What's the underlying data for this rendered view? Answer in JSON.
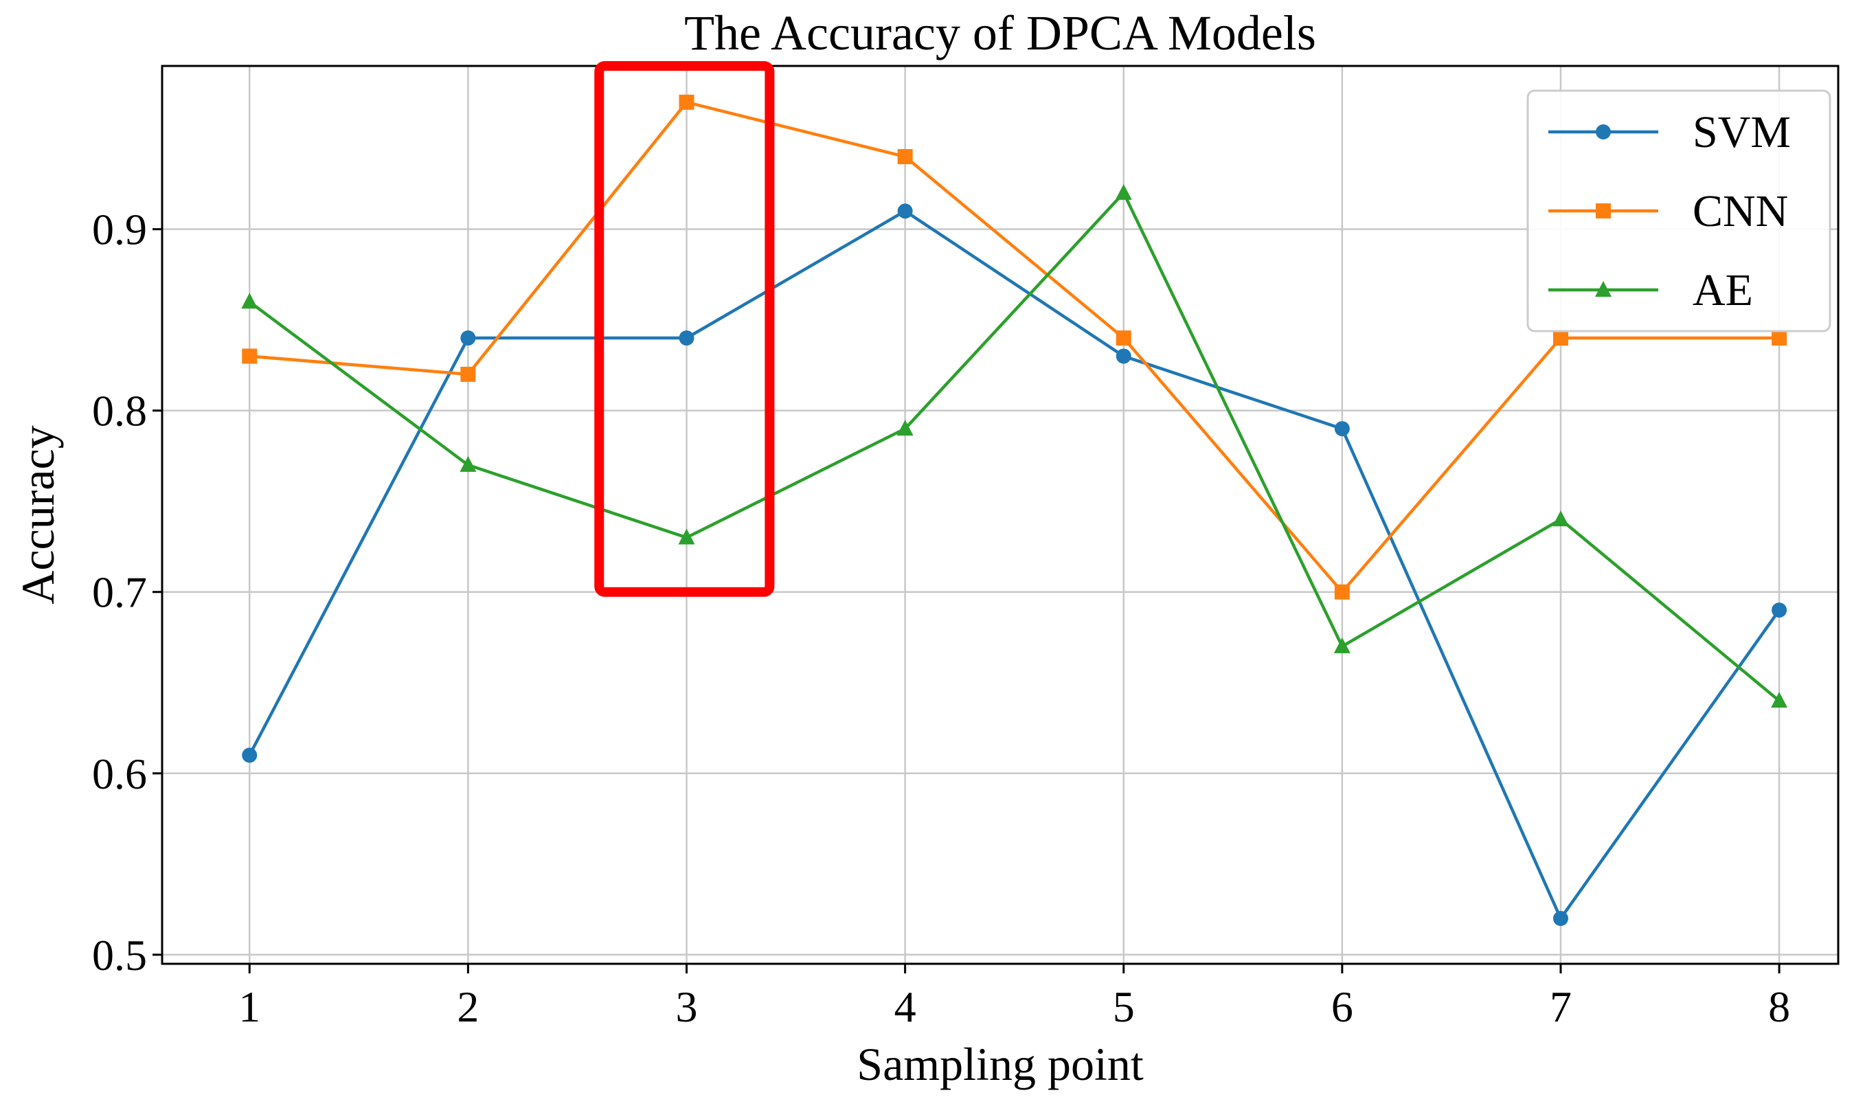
{
  "chart_data": {
    "type": "line",
    "title": "The Accuracy of DPCA Models",
    "xlabel": "Sampling point",
    "ylabel": "Accuracy",
    "x": [
      1,
      2,
      3,
      4,
      5,
      6,
      7,
      8
    ],
    "xticks": [
      "1",
      "2",
      "3",
      "4",
      "5",
      "6",
      "7",
      "8"
    ],
    "yticks": [
      "0.5",
      "0.6",
      "0.7",
      "0.8",
      "0.9"
    ],
    "ylim": [
      0.495,
      0.99
    ],
    "xlim": [
      0.6,
      8.27
    ],
    "grid": true,
    "legend_position": "top-right",
    "series": [
      {
        "name": "SVM",
        "color": "#1f77b4",
        "marker": "circle",
        "values": [
          0.61,
          0.84,
          0.84,
          0.91,
          0.83,
          0.79,
          0.52,
          0.69
        ]
      },
      {
        "name": "CNN",
        "color": "#ff7f0e",
        "marker": "square",
        "values": [
          0.83,
          0.82,
          0.97,
          0.94,
          0.84,
          0.7,
          0.84,
          0.84
        ]
      },
      {
        "name": "AE",
        "color": "#2ca02c",
        "marker": "triangle",
        "values": [
          0.86,
          0.77,
          0.73,
          0.79,
          0.92,
          0.67,
          0.74,
          0.64
        ]
      }
    ],
    "highlight": {
      "color": "#ff0000",
      "x_range": [
        2.6,
        3.38
      ],
      "y_range": [
        0.7,
        0.99
      ]
    }
  }
}
